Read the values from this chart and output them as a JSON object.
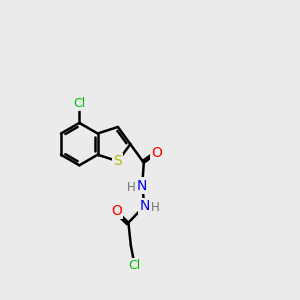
{
  "bg_color": "#ebebeb",
  "bond_color": "#000000",
  "atom_colors": {
    "S": "#b8b800",
    "O": "#ff0000",
    "N": "#0000ee",
    "Cl": "#00bb00",
    "H": "#707070",
    "C": "#000000"
  },
  "bond_width": 1.8,
  "font_size_atom": 10,
  "font_size_h": 8.5,
  "font_size_cl": 9
}
